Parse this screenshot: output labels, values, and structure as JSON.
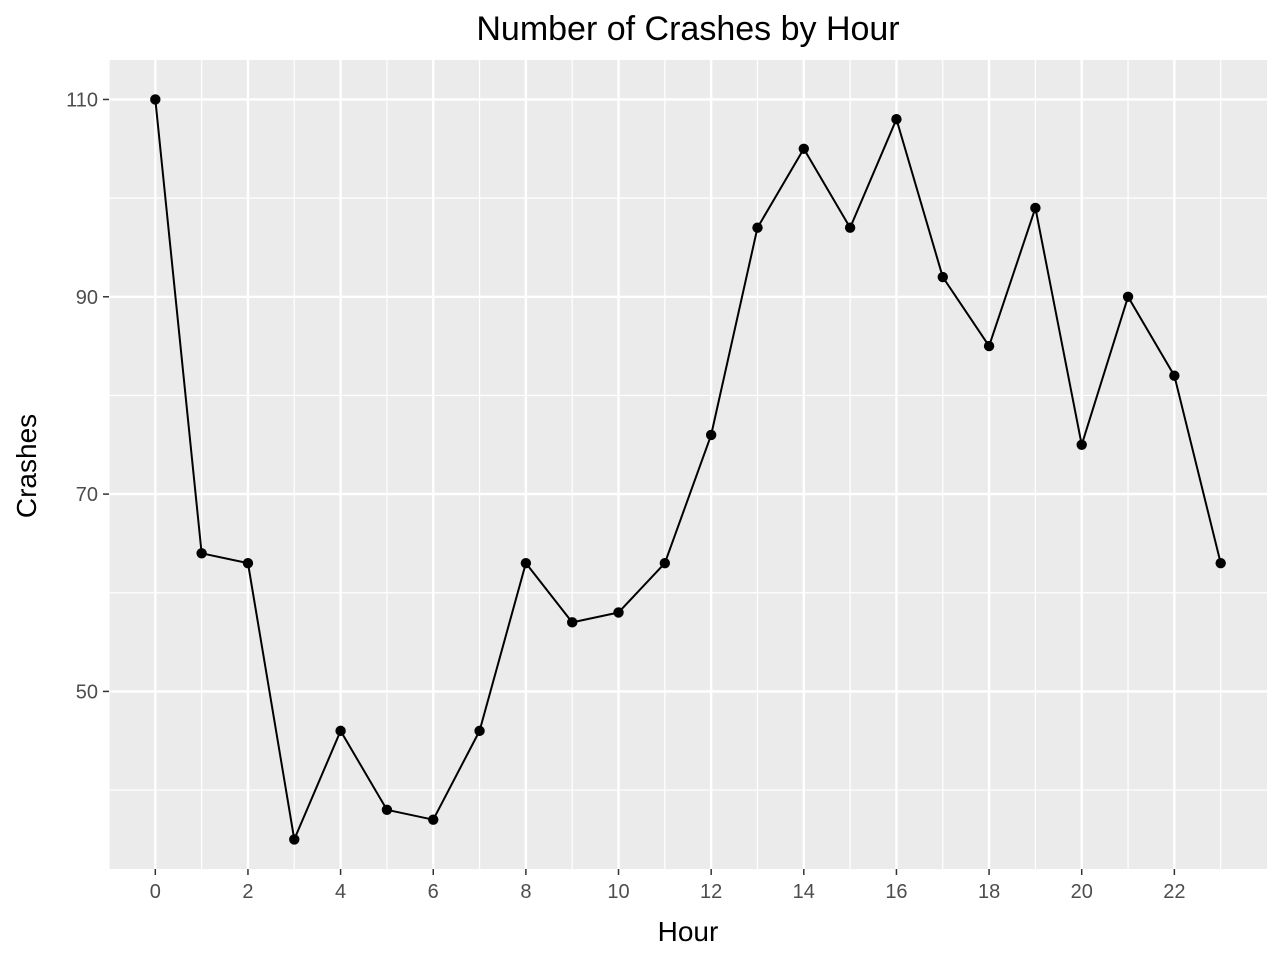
{
  "chart_data": {
    "type": "line",
    "title": "Number of Crashes by Hour",
    "xlabel": "Hour",
    "ylabel": "Crashes",
    "x": [
      0,
      1,
      2,
      3,
      4,
      5,
      6,
      7,
      8,
      9,
      10,
      11,
      12,
      13,
      14,
      15,
      16,
      17,
      18,
      19,
      20,
      21,
      22,
      23
    ],
    "series": [
      {
        "values": [
          110,
          64,
          63,
          35,
          46,
          38,
          37,
          46,
          63,
          57,
          58,
          63,
          76,
          97,
          105,
          97,
          108,
          92,
          85,
          99,
          75,
          90,
          82,
          63
        ]
      }
    ],
    "xlim": [
      -1,
      24
    ],
    "ylim": [
      32,
      114
    ],
    "x_ticks": [
      0,
      2,
      4,
      6,
      8,
      10,
      12,
      14,
      16,
      18,
      20,
      22
    ],
    "x_tick_labels": [
      "0",
      "2",
      "4",
      "6",
      "8",
      "10",
      "12",
      "14",
      "16",
      "18",
      "20",
      "22"
    ],
    "y_ticks": [
      50,
      70,
      90,
      110
    ],
    "y_tick_labels": [
      "50",
      "70",
      "90",
      "110"
    ],
    "grid": true,
    "legend": "none",
    "colors": {
      "panel": "#ebebeb",
      "grid": "#ffffff",
      "line": "#000000",
      "point": "#000000",
      "tick_text": "#4d4d4d",
      "tick_mark": "#333333"
    }
  }
}
